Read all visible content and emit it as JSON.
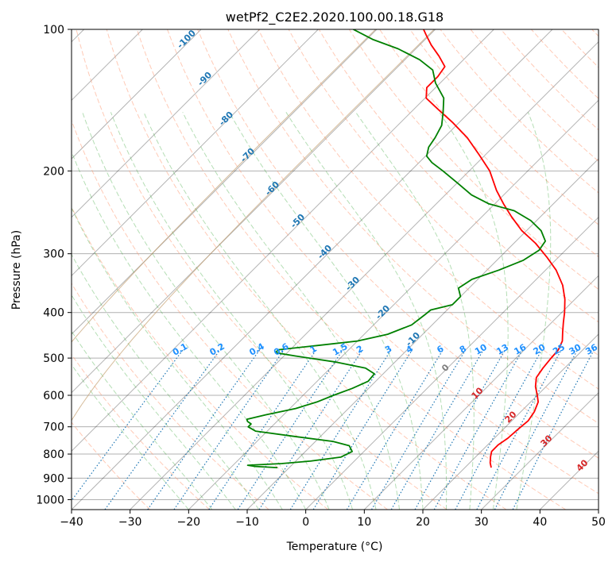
{
  "chart_data": {
    "type": "line",
    "subtype": "skew-t log-p",
    "title": "wetPf2_C2E2.2020.100.00.18.G18",
    "xlabel": "Temperature (°C)",
    "ylabel": "Pressure (hPa)",
    "xlim": [
      -40,
      50
    ],
    "ylim": [
      1050,
      100
    ],
    "yscale": "log",
    "x_ticks": [
      -40,
      -30,
      -20,
      -10,
      0,
      10,
      20,
      30,
      40,
      50
    ],
    "x_tick_labels": [
      "−40",
      "−30",
      "−20",
      "−10",
      "0",
      "10",
      "20",
      "30",
      "40",
      "50"
    ],
    "y_ticks": [
      100,
      200,
      300,
      400,
      500,
      600,
      700,
      800,
      900,
      1000
    ],
    "y_tick_labels": [
      "100",
      "200",
      "300",
      "400",
      "500",
      "600",
      "700",
      "800",
      "900",
      "1000"
    ],
    "grid": true,
    "skew": 1,
    "series": [
      {
        "color": "#ff0000",
        "values": [
          {
            "p": 855,
            "t": 24.5
          },
          {
            "p": 835,
            "t": 23.5
          },
          {
            "p": 810,
            "t": 22.5
          },
          {
            "p": 790,
            "t": 21.8
          },
          {
            "p": 765,
            "t": 21.8
          },
          {
            "p": 740,
            "t": 22.3
          },
          {
            "p": 710,
            "t": 22.5
          },
          {
            "p": 680,
            "t": 22.8
          },
          {
            "p": 650,
            "t": 22.3
          },
          {
            "p": 620,
            "t": 21.3
          },
          {
            "p": 600,
            "t": 20.0
          },
          {
            "p": 575,
            "t": 18.2
          },
          {
            "p": 550,
            "t": 16.8
          },
          {
            "p": 525,
            "t": 16.3
          },
          {
            "p": 500,
            "t": 16.0
          },
          {
            "p": 480,
            "t": 15.8
          },
          {
            "p": 460,
            "t": 15.0
          },
          {
            "p": 440,
            "t": 13.5
          },
          {
            "p": 420,
            "t": 12.0
          },
          {
            "p": 400,
            "t": 10.5
          },
          {
            "p": 375,
            "t": 8.3
          },
          {
            "p": 350,
            "t": 5.5
          },
          {
            "p": 325,
            "t": 1.8
          },
          {
            "p": 305,
            "t": -2.0
          },
          {
            "p": 285,
            "t": -6.3
          },
          {
            "p": 268,
            "t": -10.8
          },
          {
            "p": 250,
            "t": -15.0
          },
          {
            "p": 235,
            "t": -18.5
          },
          {
            "p": 220,
            "t": -22.0
          },
          {
            "p": 200,
            "t": -26.5
          },
          {
            "p": 185,
            "t": -31.0
          },
          {
            "p": 170,
            "t": -36.0
          },
          {
            "p": 158,
            "t": -41.0
          },
          {
            "p": 148,
            "t": -45.8
          },
          {
            "p": 140,
            "t": -49.8
          },
          {
            "p": 133,
            "t": -51.5
          },
          {
            "p": 126,
            "t": -51.5
          },
          {
            "p": 120,
            "t": -52.0
          },
          {
            "p": 114,
            "t": -54.8
          },
          {
            "p": 108,
            "t": -58.0
          },
          {
            "p": 103,
            "t": -60.5
          },
          {
            "p": 100,
            "t": -62.0
          }
        ]
      },
      {
        "color": "#008000",
        "values": [
          {
            "p": 855,
            "t": -12.0
          },
          {
            "p": 850,
            "t": -16.0
          },
          {
            "p": 845,
            "t": -17.5
          },
          {
            "p": 838,
            "t": -12.0
          },
          {
            "p": 828,
            "t": -7.5
          },
          {
            "p": 812,
            "t": -3.0
          },
          {
            "p": 790,
            "t": -2.0
          },
          {
            "p": 768,
            "t": -3.5
          },
          {
            "p": 752,
            "t": -7.0
          },
          {
            "p": 735,
            "t": -14.0
          },
          {
            "p": 715,
            "t": -22.0
          },
          {
            "p": 700,
            "t": -24.0
          },
          {
            "p": 690,
            "t": -24.0
          },
          {
            "p": 682,
            "t": -25.0
          },
          {
            "p": 675,
            "t": -25.5
          },
          {
            "p": 660,
            "t": -23.0
          },
          {
            "p": 640,
            "t": -19.0
          },
          {
            "p": 620,
            "t": -16.5
          },
          {
            "p": 600,
            "t": -14.8
          },
          {
            "p": 580,
            "t": -12.8
          },
          {
            "p": 560,
            "t": -11.3
          },
          {
            "p": 540,
            "t": -11.5
          },
          {
            "p": 525,
            "t": -14.0
          },
          {
            "p": 510,
            "t": -20.0
          },
          {
            "p": 495,
            "t": -28.0
          },
          {
            "p": 487,
            "t": -32.0
          },
          {
            "p": 480,
            "t": -32.0
          },
          {
            "p": 470,
            "t": -26.0
          },
          {
            "p": 460,
            "t": -20.0
          },
          {
            "p": 445,
            "t": -16.0
          },
          {
            "p": 425,
            "t": -13.5
          },
          {
            "p": 405,
            "t": -13.0
          },
          {
            "p": 395,
            "t": -12.8
          },
          {
            "p": 385,
            "t": -10.0
          },
          {
            "p": 370,
            "t": -10.0
          },
          {
            "p": 355,
            "t": -11.8
          },
          {
            "p": 340,
            "t": -11.0
          },
          {
            "p": 325,
            "t": -8.0
          },
          {
            "p": 310,
            "t": -5.5
          },
          {
            "p": 295,
            "t": -4.5
          },
          {
            "p": 282,
            "t": -5.0
          },
          {
            "p": 268,
            "t": -7.5
          },
          {
            "p": 255,
            "t": -11.0
          },
          {
            "p": 243,
            "t": -15.5
          },
          {
            "p": 235,
            "t": -21.0
          },
          {
            "p": 225,
            "t": -25.5
          },
          {
            "p": 212,
            "t": -30.0
          },
          {
            "p": 200,
            "t": -34.5
          },
          {
            "p": 192,
            "t": -37.8
          },
          {
            "p": 186,
            "t": -39.8
          },
          {
            "p": 178,
            "t": -41.0
          },
          {
            "p": 170,
            "t": -41.5
          },
          {
            "p": 160,
            "t": -42.5
          },
          {
            "p": 150,
            "t": -44.5
          },
          {
            "p": 140,
            "t": -46.8
          },
          {
            "p": 130,
            "t": -50.8
          },
          {
            "p": 122,
            "t": -53.5
          },
          {
            "p": 116,
            "t": -57.5
          },
          {
            "p": 110,
            "t": -63.0
          },
          {
            "p": 105,
            "t": -69.0
          },
          {
            "p": 100,
            "t": -74.0
          }
        ]
      }
    ],
    "isotherm_labels": {
      "values": [
        "-100",
        "-90",
        "-80",
        "-70",
        "-60",
        "-50",
        "-40",
        "-30",
        "-20",
        "-10"
      ],
      "color": "#1f77b4"
    },
    "mixing_ratio_labels": {
      "values": [
        "0.1",
        "0.2",
        "0.4",
        "0.6",
        "1",
        "1.5",
        "2",
        "3",
        "4",
        "6",
        "8",
        "10",
        "13",
        "16",
        "20",
        "25",
        "30",
        "36"
      ],
      "color": "#1e90ff",
      "level_hpa": 485
    },
    "isotherm_labels_warm": {
      "values": [
        "0",
        "10",
        "20",
        "30",
        "40"
      ],
      "zero_color": "#808080",
      "color": "#d62728"
    },
    "colors": {
      "isotherm": "#000000",
      "dry_adiabat": "#ff9e7a",
      "moist_adiabat": "#2ca02c",
      "mixing_ratio": "#1f77b4",
      "tan_curve": "#c4a070"
    }
  }
}
